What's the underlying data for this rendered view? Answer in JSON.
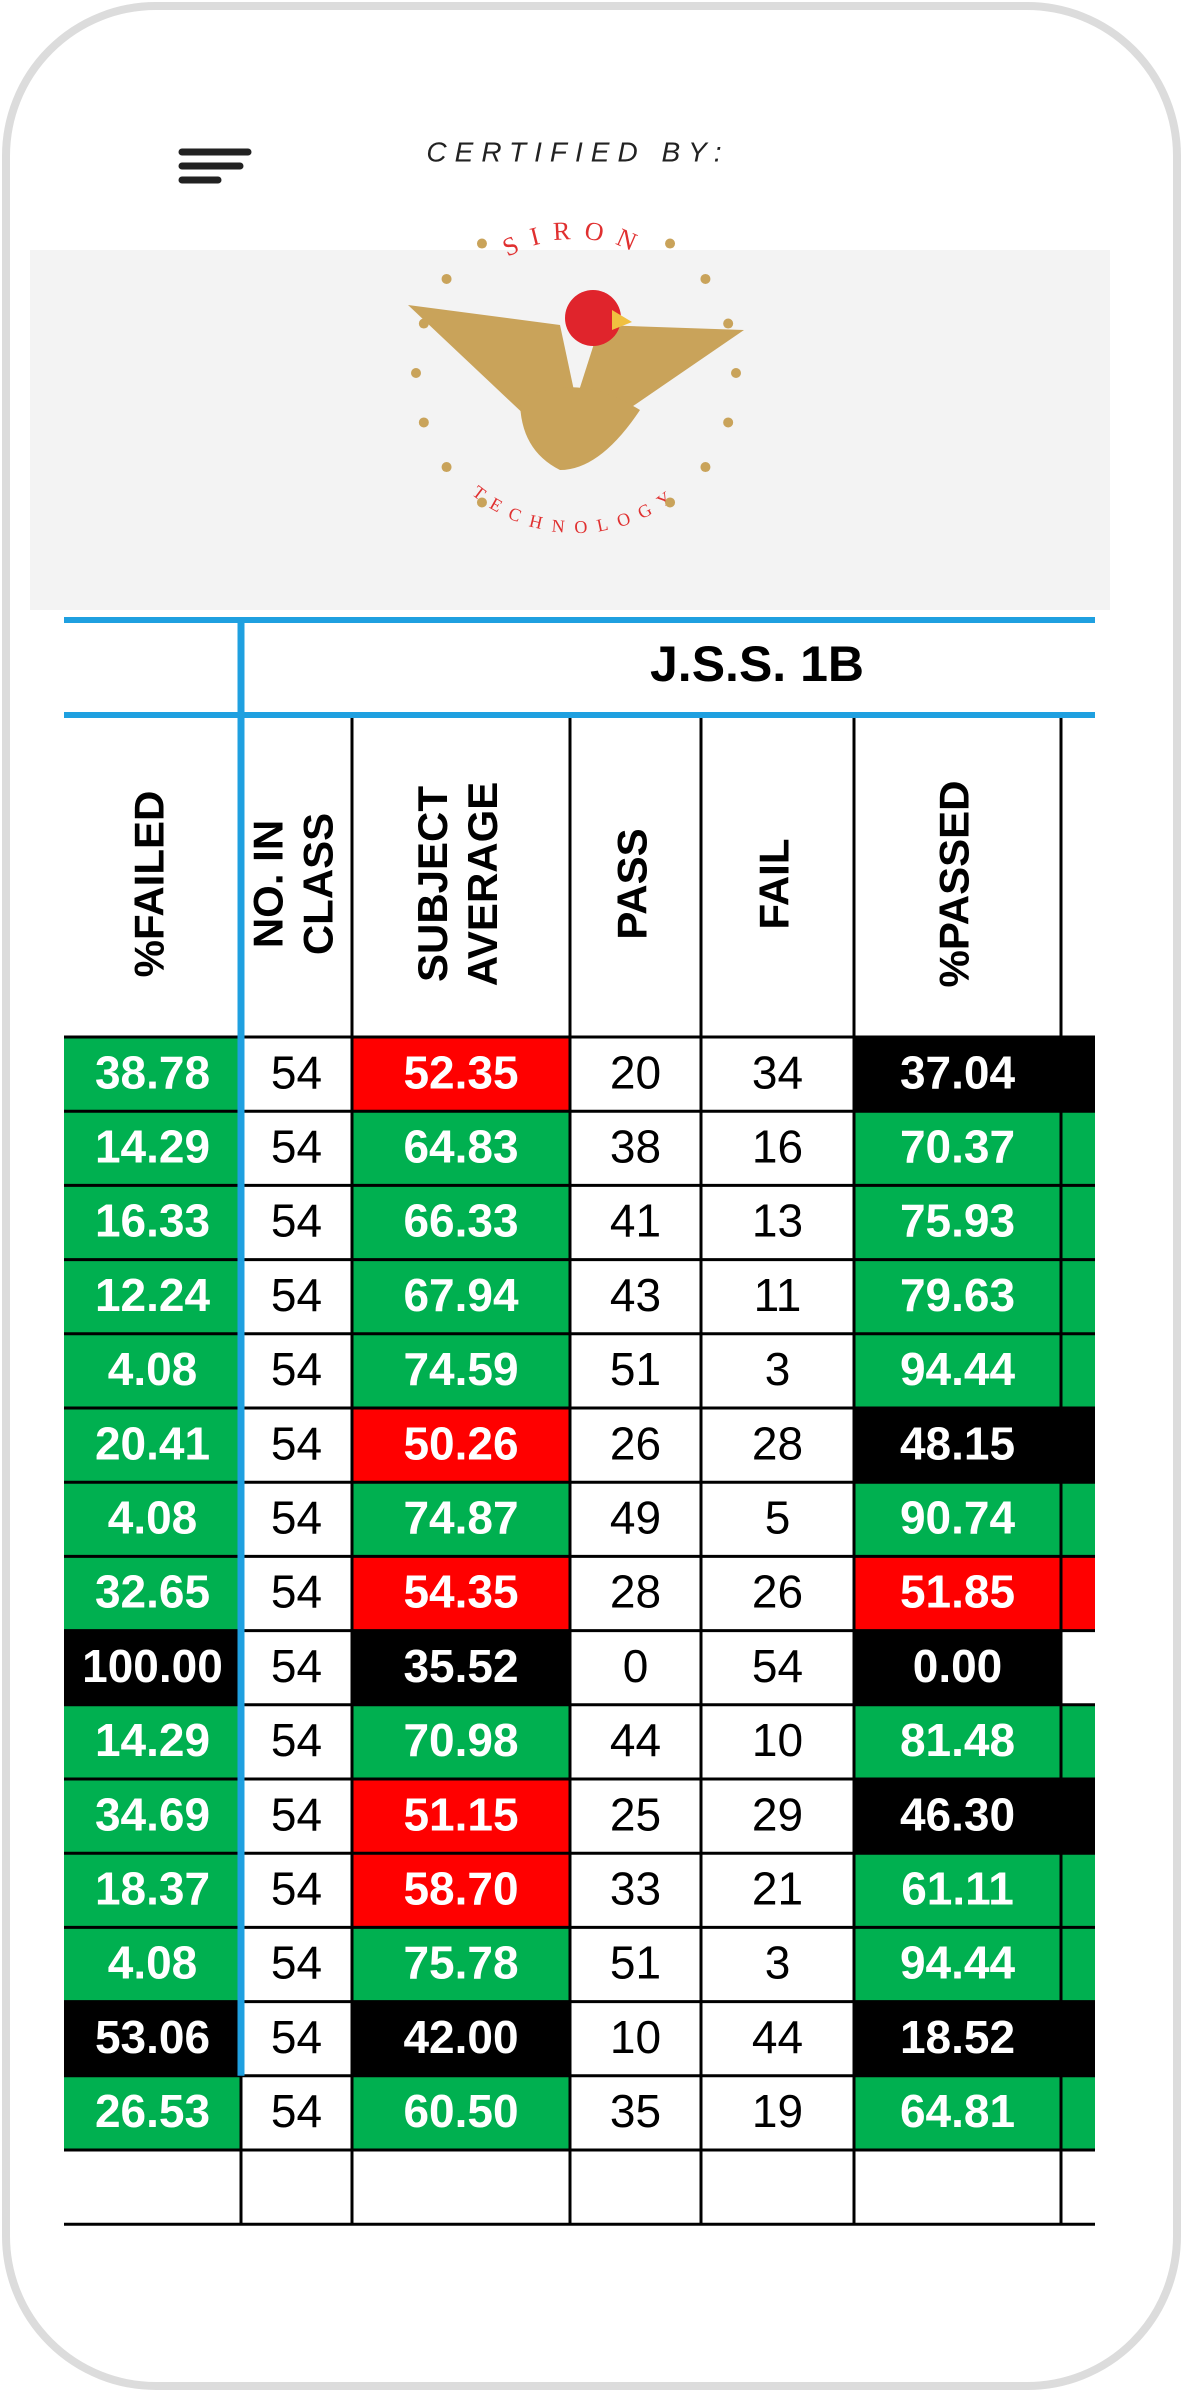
{
  "header": {
    "certified_by": "CERTIFIED BY:",
    "logo_top": "SIRON",
    "logo_bottom": "TECHNOLOGY"
  },
  "table": {
    "group_title": "J.S.S. 1B",
    "columns": [
      [
        "%FAILED"
      ],
      [
        "NO. IN",
        "CLASS"
      ],
      [
        "SUBJECT",
        "AVERAGE"
      ],
      [
        "PASS"
      ],
      [
        "FAIL"
      ],
      [
        "%PASSED"
      ]
    ],
    "rows": [
      [
        "38.78",
        "54",
        "52.35",
        "20",
        "34",
        "37.04"
      ],
      [
        "14.29",
        "54",
        "64.83",
        "38",
        "16",
        "70.37"
      ],
      [
        "16.33",
        "54",
        "66.33",
        "41",
        "13",
        "75.93"
      ],
      [
        "12.24",
        "54",
        "67.94",
        "43",
        "11",
        "79.63"
      ],
      [
        "4.08",
        "54",
        "74.59",
        "51",
        "3",
        "94.44"
      ],
      [
        "20.41",
        "54",
        "50.26",
        "26",
        "28",
        "48.15"
      ],
      [
        "4.08",
        "54",
        "74.87",
        "49",
        "5",
        "90.74"
      ],
      [
        "32.65",
        "54",
        "54.35",
        "28",
        "26",
        "51.85"
      ],
      [
        "100.00",
        "54",
        "35.52",
        "0",
        "54",
        "0.00"
      ],
      [
        "14.29",
        "54",
        "70.98",
        "44",
        "10",
        "81.48"
      ],
      [
        "34.69",
        "54",
        "51.15",
        "25",
        "29",
        "46.30"
      ],
      [
        "18.37",
        "54",
        "58.70",
        "33",
        "21",
        "61.11"
      ],
      [
        "4.08",
        "54",
        "75.78",
        "51",
        "3",
        "94.44"
      ],
      [
        "53.06",
        "54",
        "42.00",
        "10",
        "44",
        "18.52"
      ],
      [
        "26.53",
        "54",
        "60.50",
        "35",
        "19",
        "64.81"
      ]
    ],
    "fills": [
      [
        "#00b050",
        "#ffffff",
        "#ff0000",
        "#ffffff",
        "#ffffff",
        "#000000",
        "#000000"
      ],
      [
        "#00b050",
        "#ffffff",
        "#00b050",
        "#ffffff",
        "#ffffff",
        "#00b050",
        "#00b050"
      ],
      [
        "#00b050",
        "#ffffff",
        "#00b050",
        "#ffffff",
        "#ffffff",
        "#00b050",
        "#00b050"
      ],
      [
        "#00b050",
        "#ffffff",
        "#00b050",
        "#ffffff",
        "#ffffff",
        "#00b050",
        "#00b050"
      ],
      [
        "#00b050",
        "#ffffff",
        "#00b050",
        "#ffffff",
        "#ffffff",
        "#00b050",
        "#00b050"
      ],
      [
        "#00b050",
        "#ffffff",
        "#ff0000",
        "#ffffff",
        "#ffffff",
        "#000000",
        "#000000"
      ],
      [
        "#00b050",
        "#ffffff",
        "#00b050",
        "#ffffff",
        "#ffffff",
        "#00b050",
        "#00b050"
      ],
      [
        "#00b050",
        "#ffffff",
        "#ff0000",
        "#ffffff",
        "#ffffff",
        "#ff0000",
        "#ff0000"
      ],
      [
        "#000000",
        "#ffffff",
        "#000000",
        "#ffffff",
        "#ffffff",
        "#000000",
        "#ffffff"
      ],
      [
        "#00b050",
        "#ffffff",
        "#00b050",
        "#ffffff",
        "#ffffff",
        "#00b050",
        "#00b050"
      ],
      [
        "#00b050",
        "#ffffff",
        "#ff0000",
        "#ffffff",
        "#ffffff",
        "#000000",
        "#000000"
      ],
      [
        "#00b050",
        "#ffffff",
        "#ff0000",
        "#ffffff",
        "#ffffff",
        "#00b050",
        "#00b050"
      ],
      [
        "#00b050",
        "#ffffff",
        "#00b050",
        "#ffffff",
        "#ffffff",
        "#00b050",
        "#00b050"
      ],
      [
        "#000000",
        "#ffffff",
        "#000000",
        "#ffffff",
        "#ffffff",
        "#000000",
        "#000000"
      ],
      [
        "#00b050",
        "#ffffff",
        "#00b050",
        "#ffffff",
        "#ffffff",
        "#00b050",
        "#00b050"
      ]
    ]
  }
}
